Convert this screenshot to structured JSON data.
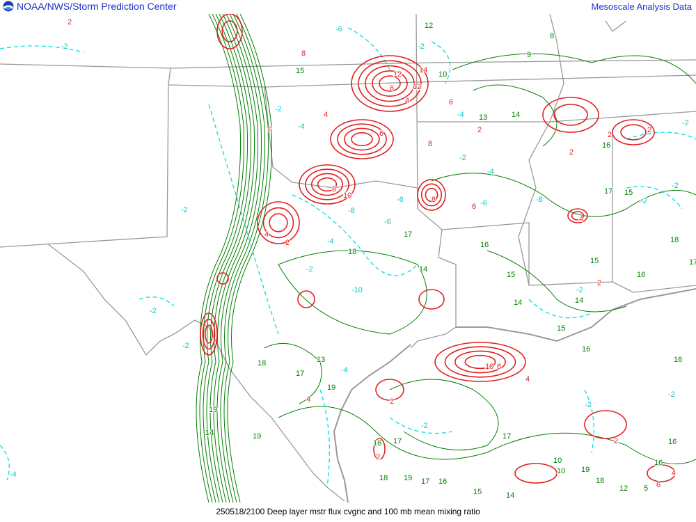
{
  "header": {
    "left_title": "NOAA/NWS/Storm Prediction Center",
    "right_title": "Mesoscale Analysis Data"
  },
  "footer": {
    "caption": "250518/2100 Deep layer mstr flux cvgnc and 100 mb mean mixing ratio"
  },
  "colors": {
    "header_text": "#1a2fcf",
    "mixing_ratio_contours": "#008000",
    "convergence_contours": "#e02020",
    "divergence_contours": "#00e0e0",
    "boundaries": "#999999"
  },
  "icons": {
    "logo": "noaa-logo"
  },
  "contour_labels": {
    "green": [
      "12",
      "8",
      "9",
      "10",
      "15",
      "13",
      "14",
      "16",
      "17",
      "15",
      "16",
      "14",
      "15",
      "14",
      "13",
      "15",
      "16",
      "17",
      "18",
      "19",
      "17",
      "18",
      "19",
      "16",
      "17",
      "18",
      "19",
      "17",
      "16",
      "15",
      "17",
      "14",
      "10",
      "10",
      "19",
      "18",
      "12",
      "5",
      "16",
      "16",
      "15",
      "16",
      "14",
      "18",
      "17",
      "16",
      "14",
      "19"
    ],
    "red": [
      "2",
      "8",
      "6",
      "4",
      "8",
      "10",
      "12",
      "6",
      "4",
      "6",
      "8",
      "12",
      "14",
      "6",
      "8",
      "2",
      "6",
      "2",
      "4",
      "10",
      "6",
      "4",
      "2",
      "4",
      "2",
      "2",
      "2",
      "4",
      "2",
      "2",
      "2",
      "6",
      "4"
    ],
    "cyan": [
      "-2",
      "-6",
      "-4",
      "-2",
      "-8",
      "-10",
      "-4",
      "-2",
      "-6",
      "-2",
      "-4",
      "-8",
      "-2",
      "-4",
      "-2",
      "-6",
      "-2",
      "-2",
      "-2",
      "-2",
      "-4",
      "-2",
      "-2",
      "-2",
      "-2",
      "-6",
      "-4",
      "-2"
    ]
  }
}
